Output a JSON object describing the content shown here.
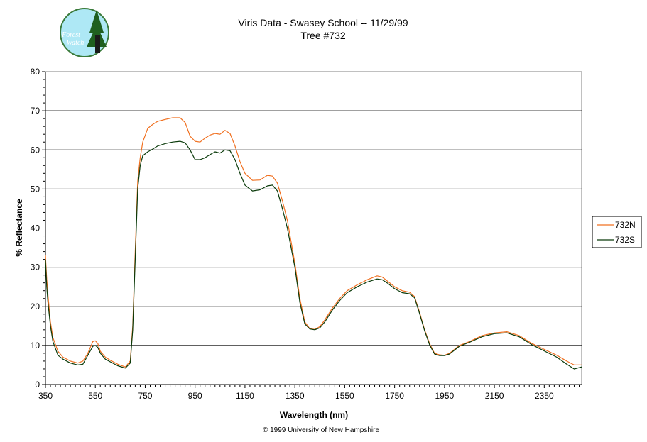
{
  "logo": {
    "line1": "Forest",
    "line2": "Watch",
    "icon": "forest-watch-logo-icon"
  },
  "footer": {
    "copyright": "© 1999 University of New Hampshire"
  },
  "chart_data": {
    "type": "line",
    "title": "Viris Data - Swasey School -- 11/29/99",
    "subtitle": "Tree #732",
    "xlabel": "Wavelength (nm)",
    "ylabel": "% Reflectance",
    "xlim": [
      350,
      2500
    ],
    "ylim": [
      0,
      80
    ],
    "xticks": [
      350,
      550,
      750,
      950,
      1150,
      1350,
      1550,
      1750,
      1950,
      2150,
      2350
    ],
    "yticks": [
      0,
      10,
      20,
      30,
      40,
      50,
      60,
      70,
      80
    ],
    "grid": "horizontal",
    "legend_position": "right",
    "series": [
      {
        "name": "732N",
        "color": "#f07020",
        "x": [
          350,
          355,
          360,
          370,
          380,
          400,
          420,
          450,
          480,
          500,
          520,
          540,
          550,
          560,
          570,
          590,
          610,
          640,
          670,
          690,
          700,
          710,
          720,
          730,
          740,
          760,
          780,
          800,
          830,
          860,
          890,
          910,
          930,
          950,
          970,
          990,
          1010,
          1030,
          1050,
          1070,
          1090,
          1110,
          1130,
          1150,
          1180,
          1210,
          1240,
          1260,
          1280,
          1300,
          1320,
          1350,
          1370,
          1390,
          1410,
          1430,
          1450,
          1470,
          1500,
          1530,
          1560,
          1600,
          1640,
          1680,
          1700,
          1720,
          1750,
          1780,
          1810,
          1830,
          1850,
          1870,
          1890,
          1910,
          1930,
          1950,
          1970,
          1990,
          2010,
          2050,
          2100,
          2150,
          2200,
          2250,
          2300,
          2350,
          2400,
          2440,
          2470,
          2500
        ],
        "y": [
          33,
          27,
          23,
          16,
          12,
          8.5,
          7,
          6,
          5.5,
          6,
          8,
          11,
          11.2,
          10.5,
          8.5,
          7,
          6.2,
          5.2,
          4.5,
          6,
          15,
          34,
          52,
          58,
          62,
          65.5,
          66.5,
          67.3,
          67.8,
          68.2,
          68.2,
          67,
          63.5,
          62.2,
          62,
          63,
          63.8,
          64.2,
          64,
          65,
          64.2,
          61,
          57,
          54,
          52.2,
          52.3,
          53.5,
          53.3,
          51.5,
          47,
          42,
          31,
          22,
          16,
          14.3,
          14.1,
          14.8,
          16.5,
          19.5,
          22,
          24,
          25.5,
          26.8,
          27.8,
          27.5,
          26.5,
          25,
          24,
          23.6,
          22.5,
          18.5,
          14,
          10.5,
          8,
          7.6,
          7.5,
          8,
          9,
          10,
          11,
          12.5,
          13.2,
          13.5,
          12.5,
          10.5,
          9,
          7.5,
          6,
          5,
          5
        ]
      },
      {
        "name": "732S",
        "color": "#0a3a0a",
        "x": [
          350,
          355,
          360,
          370,
          380,
          400,
          420,
          450,
          480,
          500,
          520,
          540,
          550,
          560,
          570,
          590,
          610,
          640,
          670,
          690,
          700,
          710,
          720,
          730,
          740,
          760,
          780,
          800,
          830,
          860,
          890,
          910,
          930,
          950,
          970,
          990,
          1010,
          1030,
          1050,
          1070,
          1090,
          1110,
          1130,
          1150,
          1180,
          1210,
          1240,
          1260,
          1280,
          1300,
          1320,
          1350,
          1370,
          1390,
          1410,
          1430,
          1450,
          1470,
          1500,
          1530,
          1560,
          1600,
          1640,
          1680,
          1700,
          1720,
          1750,
          1780,
          1810,
          1830,
          1850,
          1870,
          1890,
          1910,
          1930,
          1950,
          1970,
          1990,
          2010,
          2050,
          2100,
          2150,
          2200,
          2250,
          2300,
          2350,
          2400,
          2440,
          2470,
          2500
        ],
        "y": [
          32,
          25,
          21,
          15,
          11,
          7.5,
          6.5,
          5.5,
          5,
          5.2,
          7.5,
          9.8,
          10,
          9.5,
          8,
          6.5,
          5.8,
          4.8,
          4.2,
          5.5,
          14,
          32,
          50,
          56,
          58.5,
          59.5,
          60.2,
          61,
          61.6,
          62,
          62.2,
          61.8,
          60,
          57.5,
          57.5,
          58,
          58.8,
          59.5,
          59.2,
          60,
          59.8,
          57.5,
          54,
          51,
          49.5,
          49.8,
          50.8,
          51,
          49.5,
          45,
          40,
          30,
          21,
          15.5,
          14.2,
          14,
          14.5,
          16,
          19,
          21.5,
          23.5,
          25,
          26.2,
          27,
          26.8,
          26,
          24.5,
          23.5,
          23.2,
          22.2,
          18.2,
          13.8,
          10.2,
          7.8,
          7.4,
          7.4,
          7.8,
          8.8,
          9.8,
          10.8,
          12.2,
          13,
          13.2,
          12.2,
          10.2,
          8.6,
          7,
          5.2,
          4,
          4.5
        ]
      }
    ]
  }
}
